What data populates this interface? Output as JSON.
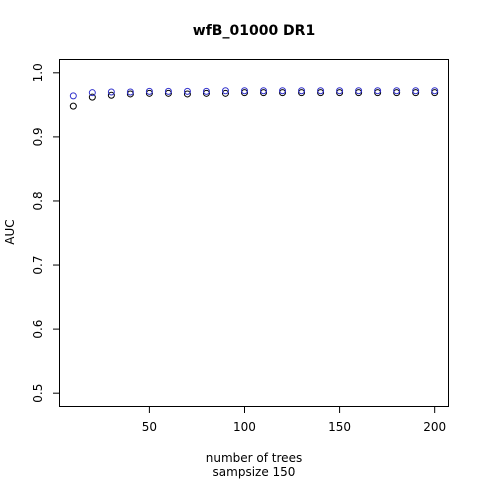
{
  "chart_data": {
    "type": "scatter",
    "title": "wfB_01000 DR1",
    "xlabel": "number of trees",
    "xlabel2": "sampsize 150",
    "ylabel": "AUC",
    "xlim": [
      3,
      207
    ],
    "ylim": [
      0.48,
      1.02
    ],
    "xticks": [
      50,
      100,
      150,
      200
    ],
    "yticks": [
      0.5,
      0.6,
      0.7,
      0.8,
      0.9,
      1.0
    ],
    "ytick_labels": [
      "0.5",
      "0.6",
      "0.7",
      "0.8",
      "0.9",
      "1.0"
    ],
    "grid": false,
    "legend": "none",
    "x": [
      10,
      20,
      30,
      40,
      50,
      60,
      70,
      80,
      90,
      100,
      110,
      120,
      130,
      140,
      150,
      160,
      170,
      180,
      190,
      200
    ],
    "series": [
      {
        "color": "#000000",
        "values": [
          0.948,
          0.962,
          0.965,
          0.967,
          0.968,
          0.968,
          0.967,
          0.968,
          0.968,
          0.969,
          0.969,
          0.969,
          0.969,
          0.969,
          0.969,
          0.969,
          0.969,
          0.969,
          0.969,
          0.969
        ]
      },
      {
        "color": "#3333cc",
        "values": [
          0.964,
          0.969,
          0.97,
          0.97,
          0.971,
          0.971,
          0.971,
          0.971,
          0.972,
          0.972,
          0.972,
          0.972,
          0.972,
          0.972,
          0.972,
          0.972,
          0.972,
          0.972,
          0.972,
          0.972
        ]
      }
    ]
  }
}
